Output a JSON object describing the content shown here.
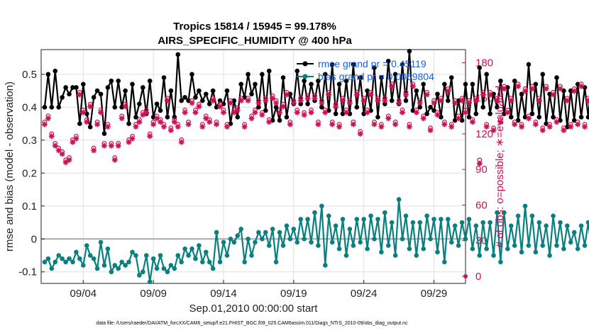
{
  "chart_data": {
    "type": "line",
    "title": "Tropics 15814 / 15945 = 99.178%",
    "subtitle": "AIRS_SPECIFIC_HUMIDITY @ 400 hPa",
    "xlabel": "Sep.01,2010 00:00:00 start",
    "ylabel": "rmse and bias (model - observation)",
    "ylabel_right": "# of obs: o=possible; ∗=evaluated",
    "footer": "data file: /Users/raeder/DAI/ATM_forcXX/CAM6_setup/f.e21.FHIST_BGC.f09_025.CAM6assim.011/Diags_NTrS_2010-09/obs_diag_output.nc",
    "xlim": [
      0.5,
      30.75
    ],
    "ylim": [
      -0.135,
      0.575
    ],
    "ylim_right": [
      -6,
      191
    ],
    "grid": true,
    "x_ticks": [
      3.5,
      8.5,
      13.5,
      18.5,
      23.5,
      28.5
    ],
    "x_tick_labels": [
      "09/04",
      "09/09",
      "09/14",
      "09/19",
      "09/24",
      "09/29"
    ],
    "y_ticks": [
      -0.1,
      0,
      0.1,
      0.2,
      0.3,
      0.4,
      0.5
    ],
    "y_tick_labels": [
      "-0.1",
      "0",
      "0.1",
      "0.2",
      "0.3",
      "0.4",
      "0.5"
    ],
    "y_ticks_right": [
      0,
      30,
      60,
      90,
      120,
      150,
      180
    ],
    "y_tick_labels_right": [
      "0",
      "30",
      "60",
      "90",
      "120",
      "150",
      "180"
    ],
    "legend": [
      {
        "name": "rmse grand pr = 0.45119",
        "color": "#000000"
      },
      {
        "name": "bias grand pr = 0.0069804",
        "color": "#0a7f80"
      }
    ],
    "legend_position": "top-right",
    "zero_line": 0,
    "x_start": 0.75,
    "x_step": 0.25,
    "series": [
      {
        "name": "rmse",
        "color": "#000000",
        "axis": "left",
        "values": [
          0.4,
          0.5,
          0.4,
          0.51,
          0.4,
          0.43,
          0.46,
          0.44,
          0.46,
          0.46,
          0.35,
          0.47,
          0.38,
          0.34,
          0.43,
          0.45,
          0.44,
          0.32,
          0.46,
          0.48,
          0.4,
          0.48,
          0.4,
          0.45,
          0.35,
          0.47,
          0.37,
          0.41,
          0.46,
          0.38,
          0.48,
          0.37,
          0.41,
          0.39,
          0.49,
          0.37,
          0.45,
          0.37,
          0.56,
          0.42,
          0.43,
          0.42,
          0.5,
          0.43,
          0.45,
          0.42,
          0.44,
          0.41,
          0.45,
          0.4,
          0.42,
          0.41,
          0.45,
          0.35,
          0.42,
          0.37,
          0.47,
          0.43,
          0.5,
          0.44,
          0.47,
          0.4,
          0.5,
          0.39,
          0.51,
          0.36,
          0.4,
          0.36,
          0.49,
          0.37,
          0.44,
          0.41,
          0.51,
          0.41,
          0.48,
          0.41,
          0.47,
          0.42,
          0.48,
          0.4,
          0.5,
          0.39,
          0.53,
          0.38,
          0.47,
          0.38,
          0.48,
          0.38,
          0.53,
          0.4,
          0.49,
          0.38,
          0.45,
          0.39,
          0.52,
          0.37,
          0.49,
          0.41,
          0.54,
          0.42,
          0.5,
          0.41,
          0.53,
          0.42,
          0.57,
          0.39,
          0.45,
          0.4,
          0.47,
          0.38,
          0.4,
          0.39,
          0.44,
          0.37,
          0.47,
          0.42,
          0.49,
          0.36,
          0.42,
          0.36,
          0.47,
          0.37,
          0.47,
          0.38,
          0.52,
          0.4,
          0.5,
          0.38,
          0.44,
          0.4,
          0.48,
          0.38,
          0.46,
          0.37,
          0.48,
          0.36,
          0.44,
          0.37,
          0.53,
          0.38,
          0.47,
          0.37,
          0.5,
          0.35,
          0.44,
          0.37,
          0.49,
          0.36,
          0.45,
          0.34,
          0.45,
          0.36,
          0.47,
          0.37,
          0.46,
          0.37,
          0.5,
          0.36,
          0.46,
          0.38,
          0.52,
          0.38,
          0.51,
          0.39,
          0.5,
          0.39,
          0.45,
          0.36,
          0.55,
          0.37,
          0.56,
          0.39,
          0.47,
          0.38,
          0.46,
          0.36,
          0.44,
          0.36,
          0.49,
          0.38,
          0.45,
          0.32,
          0.52,
          0.36,
          0.55,
          0.36,
          0.47,
          0.46
        ]
      },
      {
        "name": "bias",
        "color": "#0a7f80",
        "axis": "left",
        "values": [
          -0.07,
          -0.06,
          -0.09,
          -0.07,
          -0.05,
          -0.06,
          -0.07,
          -0.06,
          -0.07,
          -0.04,
          -0.06,
          -0.08,
          -0.02,
          -0.05,
          -0.06,
          -0.09,
          -0.01,
          -0.08,
          -0.03,
          -0.1,
          -0.08,
          -0.09,
          -0.07,
          -0.08,
          -0.07,
          -0.04,
          -0.05,
          -0.11,
          -0.1,
          -0.05,
          -0.13,
          -0.06,
          -0.09,
          -0.05,
          -0.09,
          -0.1,
          -0.08,
          -0.09,
          -0.05,
          -0.07,
          -0.03,
          -0.05,
          -0.03,
          -0.06,
          -0.02,
          -0.07,
          -0.04,
          -0.07,
          -0.09,
          0.02,
          -0.07,
          -0.01,
          -0.05,
          0.0,
          -0.01,
          0.01,
          0.03,
          -0.07,
          0.0,
          -0.05,
          -0.01,
          0.02,
          0.0,
          0.02,
          -0.02,
          0.03,
          -0.07,
          0.02,
          -0.02,
          0.04,
          0.0,
          0.03,
          -0.01,
          0.06,
          0.0,
          0.06,
          -0.01,
          0.08,
          -0.02,
          0.1,
          -0.08,
          0.07,
          -0.01,
          0.04,
          -0.03,
          0.06,
          -0.05,
          0.03,
          -0.02,
          0.06,
          -0.01,
          0.06,
          -0.03,
          0.07,
          0.0,
          0.06,
          -0.04,
          0.08,
          -0.02,
          0.05,
          -0.05,
          0.12,
          0.0,
          0.07,
          -0.03,
          0.05,
          -0.05,
          0.05,
          -0.03,
          0.07,
          0.0,
          0.06,
          -0.04,
          0.06,
          -0.07,
          0.06,
          -0.01,
          0.04,
          -0.02,
          0.05,
          0.0,
          0.06,
          -0.03,
          0.04,
          -0.05,
          0.05,
          -0.03,
          0.05,
          -0.05,
          0.08,
          -0.07,
          0.08,
          -0.03,
          0.04,
          -0.02,
          0.07,
          -0.04,
          0.1,
          -0.02,
          0.07,
          -0.04,
          0.05,
          -0.02,
          0.04,
          -0.05,
          0.07,
          -0.02,
          0.05,
          -0.03,
          0.04,
          -0.01,
          0.02,
          -0.03,
          0.04,
          -0.02,
          0.05,
          -0.04,
          0.03,
          -0.01,
          0.04,
          -0.03,
          0.03,
          -0.02,
          0.05,
          -0.05,
          0.04,
          -0.04,
          0.07,
          -0.03,
          0.05,
          -0.04,
          0.05,
          -0.02,
          0.03,
          -0.04,
          0.02,
          -0.03,
          0.0,
          -0.04,
          0.04,
          -0.02,
          0.0,
          -0.02,
          0.01,
          0.02,
          0.09,
          0.02,
          0.03,
          -0.02,
          -0.05
        ]
      },
      {
        "name": "possible",
        "color": "#cc1155",
        "axis": "right",
        "marker": "circle",
        "values": [
          130,
          135,
          120,
          112,
          108,
          105,
          98,
          100,
          115,
          118,
          155,
          140,
          132,
          145,
          108,
          130,
          140,
          112,
          128,
          112,
          100,
          112,
          135,
          145,
          115,
          118,
          128,
          132,
          138,
          140,
          120,
          130,
          135,
          132,
          128,
          150,
          125,
          132,
          128,
          115,
          140,
          130,
          148,
          140,
          145,
          128,
          135,
          132,
          150,
          130,
          145,
          140,
          128,
          148,
          140,
          142,
          150,
          128,
          150,
          135,
          140,
          148,
          138,
          150,
          132,
          152,
          148,
          140,
          145,
          155,
          130,
          148,
          140,
          150,
          138,
          152,
          140,
          152,
          130,
          148,
          140,
          155,
          130,
          145,
          128,
          150,
          140,
          148,
          130,
          155,
          122,
          150,
          140,
          155,
          130,
          150,
          128,
          150,
          135,
          162,
          130,
          148,
          140,
          155,
          128,
          162,
          140,
          148,
          135,
          155,
          125,
          148,
          138,
          150,
          130,
          158,
          128,
          148,
          135,
          150,
          140,
          148,
          132,
          150,
          98,
          155,
          128,
          155,
          125,
          150,
          132,
          160,
          140,
          150,
          130,
          162,
          128,
          158,
          135,
          160,
          130,
          150,
          125,
          160,
          128,
          155,
          132,
          160,
          125,
          150,
          128,
          158,
          130,
          162,
          128,
          150,
          130,
          158,
          125,
          150,
          120,
          160,
          130,
          155,
          128,
          158,
          125,
          160,
          130,
          155,
          128,
          155,
          132,
          158,
          125,
          155,
          122,
          152,
          120,
          148,
          130,
          150,
          128,
          155,
          95,
          150,
          70,
          155,
          112,
          115,
          125,
          118
        ]
      },
      {
        "name": "evaluated",
        "color": "#cc1155",
        "axis": "right",
        "marker": "asterisk",
        "values": [
          128,
          133,
          118,
          110,
          106,
          103,
          96,
          98,
          113,
          116,
          153,
          138,
          130,
          143,
          106,
          128,
          138,
          110,
          126,
          110,
          98,
          110,
          133,
          143,
          113,
          116,
          126,
          130,
          136,
          138,
          118,
          128,
          133,
          130,
          126,
          148,
          123,
          130,
          126,
          113,
          138,
          128,
          146,
          138,
          143,
          126,
          133,
          130,
          148,
          128,
          143,
          138,
          126,
          146,
          138,
          140,
          148,
          126,
          148,
          133,
          138,
          146,
          136,
          148,
          130,
          150,
          146,
          138,
          143,
          153,
          128,
          146,
          138,
          148,
          136,
          150,
          138,
          150,
          128,
          146,
          138,
          153,
          128,
          143,
          126,
          148,
          138,
          146,
          128,
          153,
          120,
          148,
          138,
          153,
          128,
          148,
          126,
          148,
          133,
          160,
          128,
          146,
          138,
          153,
          126,
          160,
          138,
          146,
          133,
          153,
          123,
          146,
          136,
          148,
          128,
          156,
          126,
          146,
          133,
          148,
          138,
          146,
          130,
          148,
          95,
          153,
          126,
          153,
          123,
          148,
          130,
          158,
          138,
          148,
          128,
          160,
          126,
          156,
          133,
          158,
          128,
          148,
          123,
          158,
          126,
          153,
          130,
          158,
          123,
          148,
          126,
          156,
          128,
          160,
          126,
          148,
          128,
          156,
          123,
          148,
          118,
          158,
          128,
          153,
          126,
          156,
          123,
          158,
          128,
          153,
          126,
          153,
          130,
          156,
          123,
          153,
          120,
          150,
          118,
          146,
          128,
          148,
          126,
          153,
          92,
          148,
          67,
          153,
          110,
          113,
          123,
          116
        ]
      }
    ]
  }
}
